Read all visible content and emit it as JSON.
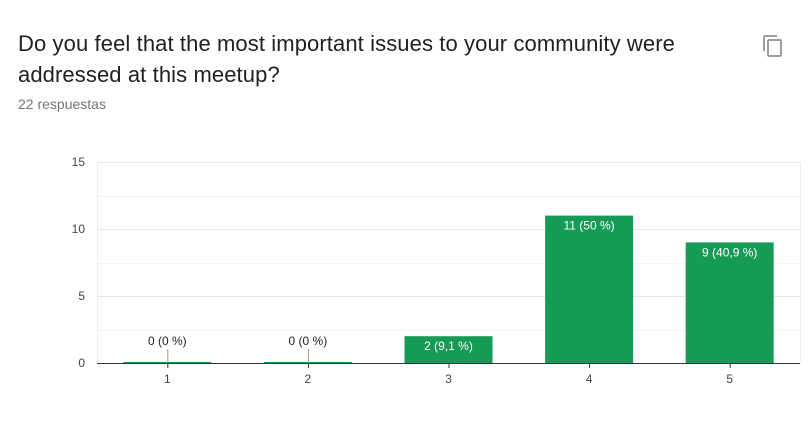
{
  "question": {
    "title": "Do you feel that the most important issues to your community were addressed at this meetup?",
    "response_count": "22 respuestas"
  },
  "icons": {
    "copy": "copy-icon"
  },
  "colors": {
    "bar": "#169b57",
    "grid": "#eeeeee",
    "axis": "#333333"
  },
  "chart_data": {
    "type": "bar",
    "categories": [
      "1",
      "2",
      "3",
      "4",
      "5"
    ],
    "values": [
      0,
      0,
      2,
      11,
      9
    ],
    "labels": [
      "0 (0 %)",
      "0 (0 %)",
      "2 (9,1 %)",
      "11 (50 %)",
      "9 (40,9 %)"
    ],
    "title": "",
    "xlabel": "",
    "ylabel": "",
    "ylim": [
      0,
      15
    ],
    "yticks": [
      0,
      5,
      10,
      15
    ],
    "grid": true
  }
}
